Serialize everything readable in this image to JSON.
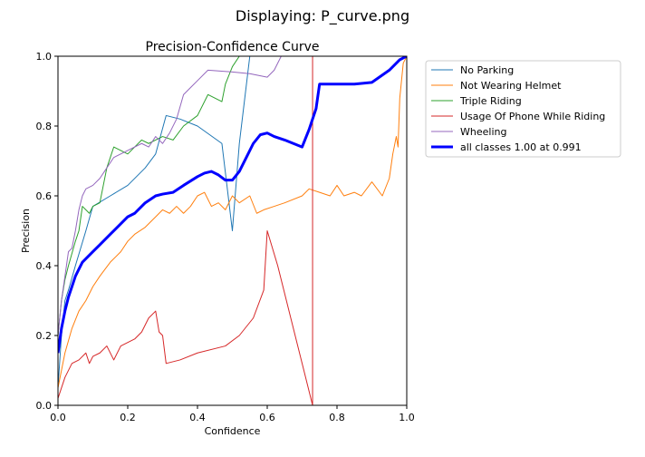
{
  "viewer": {
    "title": "Displaying: P_curve.png"
  },
  "chart_data": {
    "type": "line",
    "title": "Precision-Confidence Curve",
    "xlabel": "Confidence",
    "ylabel": "Precision",
    "xlim": [
      0,
      1
    ],
    "ylim": [
      0,
      1
    ],
    "xticks": [
      "0.0",
      "0.2",
      "0.4",
      "0.6",
      "0.8",
      "1.0"
    ],
    "yticks": [
      "0.0",
      "0.2",
      "0.4",
      "0.6",
      "0.8",
      "1.0"
    ],
    "grid": false,
    "legend_position": "outside-right",
    "series": [
      {
        "name": "No Parking",
        "color": "#1f77b4",
        "width": 1,
        "points": [
          [
            0,
            0.05
          ],
          [
            0.01,
            0.2
          ],
          [
            0.02,
            0.3
          ],
          [
            0.03,
            0.33
          ],
          [
            0.05,
            0.4
          ],
          [
            0.08,
            0.5
          ],
          [
            0.1,
            0.57
          ],
          [
            0.15,
            0.6
          ],
          [
            0.2,
            0.63
          ],
          [
            0.25,
            0.68
          ],
          [
            0.28,
            0.72
          ],
          [
            0.31,
            0.83
          ],
          [
            0.35,
            0.82
          ],
          [
            0.4,
            0.8
          ],
          [
            0.47,
            0.75
          ],
          [
            0.5,
            0.5
          ],
          [
            0.52,
            0.75
          ],
          [
            0.55,
            1.0
          ],
          [
            1.0,
            1.0
          ]
        ]
      },
      {
        "name": "Not Wearing Helmet",
        "color": "#ff7f0e",
        "width": 1,
        "points": [
          [
            0,
            0.05
          ],
          [
            0.02,
            0.15
          ],
          [
            0.04,
            0.22
          ],
          [
            0.06,
            0.27
          ],
          [
            0.08,
            0.3
          ],
          [
            0.1,
            0.34
          ],
          [
            0.12,
            0.37
          ],
          [
            0.15,
            0.41
          ],
          [
            0.18,
            0.44
          ],
          [
            0.2,
            0.47
          ],
          [
            0.22,
            0.49
          ],
          [
            0.25,
            0.51
          ],
          [
            0.28,
            0.54
          ],
          [
            0.3,
            0.56
          ],
          [
            0.32,
            0.55
          ],
          [
            0.34,
            0.57
          ],
          [
            0.36,
            0.55
          ],
          [
            0.38,
            0.57
          ],
          [
            0.4,
            0.6
          ],
          [
            0.42,
            0.61
          ],
          [
            0.44,
            0.57
          ],
          [
            0.46,
            0.58
          ],
          [
            0.48,
            0.56
          ],
          [
            0.5,
            0.6
          ],
          [
            0.52,
            0.58
          ],
          [
            0.55,
            0.6
          ],
          [
            0.57,
            0.55
          ],
          [
            0.59,
            0.56
          ],
          [
            0.62,
            0.57
          ],
          [
            0.65,
            0.58
          ],
          [
            0.7,
            0.6
          ],
          [
            0.72,
            0.62
          ],
          [
            0.75,
            0.61
          ],
          [
            0.78,
            0.6
          ],
          [
            0.8,
            0.63
          ],
          [
            0.82,
            0.6
          ],
          [
            0.85,
            0.61
          ],
          [
            0.87,
            0.6
          ],
          [
            0.9,
            0.64
          ],
          [
            0.93,
            0.6
          ],
          [
            0.95,
            0.65
          ],
          [
            0.96,
            0.72
          ],
          [
            0.97,
            0.77
          ],
          [
            0.975,
            0.74
          ],
          [
            0.98,
            0.88
          ],
          [
            0.99,
            0.98
          ],
          [
            1.0,
            1.0
          ]
        ]
      },
      {
        "name": "Triple Riding",
        "color": "#2ca02c",
        "width": 1,
        "points": [
          [
            0,
            0.2
          ],
          [
            0.01,
            0.3
          ],
          [
            0.02,
            0.36
          ],
          [
            0.03,
            0.4
          ],
          [
            0.05,
            0.47
          ],
          [
            0.06,
            0.5
          ],
          [
            0.07,
            0.57
          ],
          [
            0.09,
            0.55
          ],
          [
            0.1,
            0.57
          ],
          [
            0.12,
            0.58
          ],
          [
            0.14,
            0.68
          ],
          [
            0.16,
            0.74
          ],
          [
            0.2,
            0.72
          ],
          [
            0.24,
            0.76
          ],
          [
            0.26,
            0.75
          ],
          [
            0.3,
            0.77
          ],
          [
            0.33,
            0.76
          ],
          [
            0.36,
            0.8
          ],
          [
            0.4,
            0.83
          ],
          [
            0.43,
            0.89
          ],
          [
            0.47,
            0.87
          ],
          [
            0.48,
            0.92
          ],
          [
            0.5,
            0.97
          ],
          [
            0.52,
            1.0
          ],
          [
            1.0,
            1.0
          ]
        ]
      },
      {
        "name": "Usage Of Phone While Riding",
        "color": "#d62728",
        "width": 1,
        "points": [
          [
            0,
            0.02
          ],
          [
            0.02,
            0.08
          ],
          [
            0.04,
            0.12
          ],
          [
            0.06,
            0.13
          ],
          [
            0.08,
            0.15
          ],
          [
            0.09,
            0.12
          ],
          [
            0.1,
            0.14
          ],
          [
            0.12,
            0.15
          ],
          [
            0.14,
            0.17
          ],
          [
            0.16,
            0.13
          ],
          [
            0.18,
            0.17
          ],
          [
            0.2,
            0.18
          ],
          [
            0.22,
            0.19
          ],
          [
            0.24,
            0.21
          ],
          [
            0.26,
            0.25
          ],
          [
            0.28,
            0.27
          ],
          [
            0.29,
            0.21
          ],
          [
            0.3,
            0.2
          ],
          [
            0.31,
            0.12
          ],
          [
            0.35,
            0.13
          ],
          [
            0.4,
            0.15
          ],
          [
            0.48,
            0.17
          ],
          [
            0.52,
            0.2
          ],
          [
            0.56,
            0.25
          ],
          [
            0.59,
            0.33
          ],
          [
            0.6,
            0.5
          ],
          [
            0.63,
            0.4
          ],
          [
            0.67,
            0.24
          ],
          [
            0.7,
            0.12
          ],
          [
            0.73,
            0.0
          ],
          [
            0.73,
            1.0
          ],
          [
            1.0,
            1.0
          ]
        ]
      },
      {
        "name": "Wheeling",
        "color": "#9467bd",
        "width": 1,
        "points": [
          [
            0,
            0.2
          ],
          [
            0.01,
            0.3
          ],
          [
            0.02,
            0.37
          ],
          [
            0.03,
            0.44
          ],
          [
            0.04,
            0.45
          ],
          [
            0.05,
            0.5
          ],
          [
            0.06,
            0.56
          ],
          [
            0.07,
            0.6
          ],
          [
            0.08,
            0.62
          ],
          [
            0.1,
            0.63
          ],
          [
            0.12,
            0.65
          ],
          [
            0.14,
            0.68
          ],
          [
            0.16,
            0.71
          ],
          [
            0.2,
            0.73
          ],
          [
            0.24,
            0.75
          ],
          [
            0.26,
            0.74
          ],
          [
            0.28,
            0.77
          ],
          [
            0.3,
            0.75
          ],
          [
            0.32,
            0.78
          ],
          [
            0.34,
            0.82
          ],
          [
            0.36,
            0.89
          ],
          [
            0.38,
            0.91
          ],
          [
            0.4,
            0.93
          ],
          [
            0.43,
            0.96
          ],
          [
            0.5,
            0.955
          ],
          [
            0.55,
            0.95
          ],
          [
            0.6,
            0.94
          ],
          [
            0.62,
            0.96
          ],
          [
            0.64,
            1.0
          ],
          [
            1.0,
            1.0
          ]
        ]
      },
      {
        "name": "all classes 1.00 at 0.991",
        "color": "#0000ff",
        "width": 3,
        "points": [
          [
            0,
            0.15
          ],
          [
            0.01,
            0.22
          ],
          [
            0.02,
            0.27
          ],
          [
            0.03,
            0.31
          ],
          [
            0.04,
            0.34
          ],
          [
            0.05,
            0.37
          ],
          [
            0.06,
            0.39
          ],
          [
            0.07,
            0.41
          ],
          [
            0.08,
            0.42
          ],
          [
            0.1,
            0.44
          ],
          [
            0.12,
            0.46
          ],
          [
            0.15,
            0.49
          ],
          [
            0.18,
            0.52
          ],
          [
            0.2,
            0.54
          ],
          [
            0.22,
            0.55
          ],
          [
            0.25,
            0.58
          ],
          [
            0.28,
            0.6
          ],
          [
            0.3,
            0.605
          ],
          [
            0.33,
            0.61
          ],
          [
            0.36,
            0.63
          ],
          [
            0.4,
            0.655
          ],
          [
            0.42,
            0.665
          ],
          [
            0.44,
            0.67
          ],
          [
            0.46,
            0.66
          ],
          [
            0.48,
            0.645
          ],
          [
            0.5,
            0.645
          ],
          [
            0.52,
            0.67
          ],
          [
            0.54,
            0.71
          ],
          [
            0.56,
            0.75
          ],
          [
            0.58,
            0.775
          ],
          [
            0.6,
            0.78
          ],
          [
            0.62,
            0.77
          ],
          [
            0.65,
            0.76
          ],
          [
            0.7,
            0.74
          ],
          [
            0.72,
            0.79
          ],
          [
            0.74,
            0.85
          ],
          [
            0.75,
            0.92
          ],
          [
            0.8,
            0.92
          ],
          [
            0.85,
            0.92
          ],
          [
            0.9,
            0.925
          ],
          [
            0.95,
            0.96
          ],
          [
            0.98,
            0.99
          ],
          [
            1.0,
            1.0
          ]
        ]
      }
    ]
  }
}
